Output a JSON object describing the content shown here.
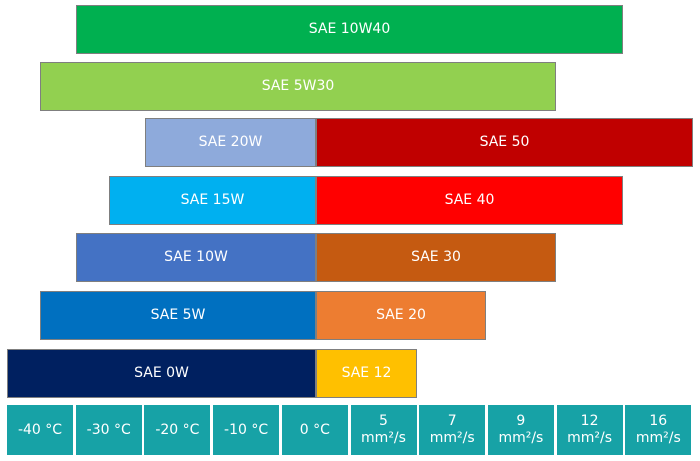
{
  "rows": [
    {
      "bars": [
        {
          "label": "SAE 10W40"
        }
      ]
    },
    {
      "bars": [
        {
          "label": "SAE 5W30"
        }
      ]
    },
    {
      "bars": [
        {
          "label": "SAE 20W"
        },
        {
          "label": "SAE 50"
        }
      ]
    },
    {
      "bars": [
        {
          "label": "SAE 15W"
        },
        {
          "label": "SAE 40"
        }
      ]
    },
    {
      "bars": [
        {
          "label": "SAE 10W"
        },
        {
          "label": "SAE 30"
        }
      ]
    },
    {
      "bars": [
        {
          "label": "SAE 5W"
        },
        {
          "label": "SAE 20"
        }
      ]
    },
    {
      "bars": [
        {
          "label": "SAE 0W"
        },
        {
          "label": "SAE 12"
        }
      ]
    }
  ],
  "scale": [
    {
      "label": "-40 °C"
    },
    {
      "label": "-30 °C"
    },
    {
      "label": "-20 °C"
    },
    {
      "label": "-10 °C"
    },
    {
      "label": "0 °C"
    },
    {
      "value": "5",
      "unit": "mm²/s"
    },
    {
      "value": "7",
      "unit": "mm²/s"
    },
    {
      "value": "9",
      "unit": "mm²/s"
    },
    {
      "value": "12",
      "unit": "mm²/s"
    },
    {
      "value": "16",
      "unit": "mm²/s"
    }
  ]
}
